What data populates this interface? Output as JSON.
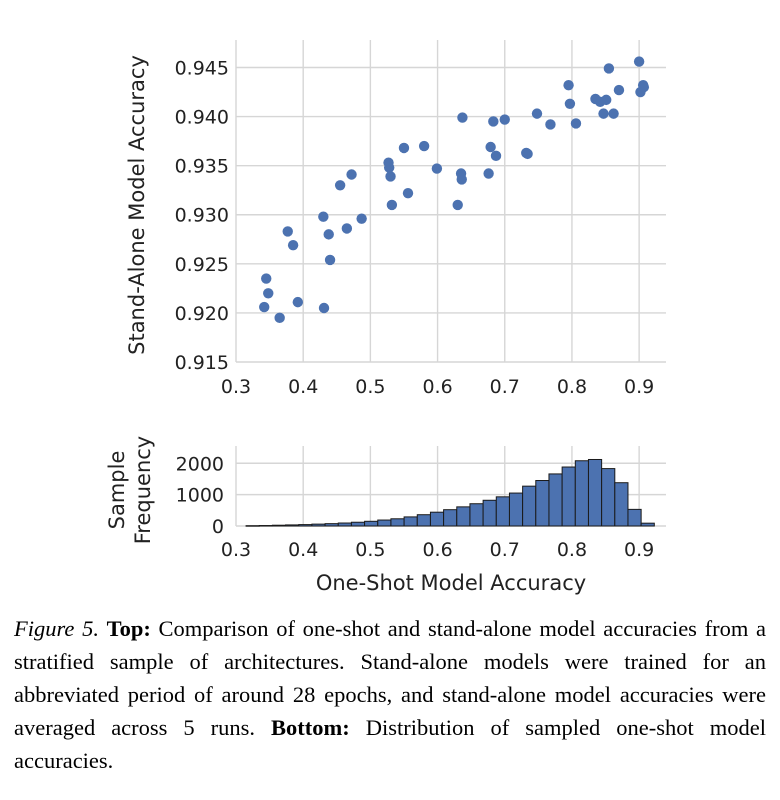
{
  "chart_data": [
    {
      "type": "scatter",
      "xlabel": "",
      "ylabel": "Stand-Alone Model Accuracy",
      "xlim": [
        0.3,
        0.94
      ],
      "ylim": [
        0.915,
        0.9478
      ],
      "xticks": [
        "0.3",
        "0.4",
        "0.5",
        "0.6",
        "0.7",
        "0.8",
        "0.9"
      ],
      "yticks": [
        "0.915",
        "0.920",
        "0.925",
        "0.930",
        "0.935",
        "0.940",
        "0.945"
      ],
      "grid": true,
      "color": "#4c72b0",
      "points": [
        [
          0.342,
          0.9206
        ],
        [
          0.345,
          0.9235
        ],
        [
          0.348,
          0.922
        ],
        [
          0.365,
          0.9195
        ],
        [
          0.377,
          0.9283
        ],
        [
          0.385,
          0.9269
        ],
        [
          0.392,
          0.9211
        ],
        [
          0.43,
          0.9298
        ],
        [
          0.431,
          0.9205
        ],
        [
          0.438,
          0.928
        ],
        [
          0.44,
          0.9254
        ],
        [
          0.455,
          0.933
        ],
        [
          0.465,
          0.9286
        ],
        [
          0.472,
          0.9341
        ],
        [
          0.487,
          0.9296
        ],
        [
          0.527,
          0.9353
        ],
        [
          0.528,
          0.9348
        ],
        [
          0.53,
          0.9339
        ],
        [
          0.532,
          0.931
        ],
        [
          0.55,
          0.9368
        ],
        [
          0.556,
          0.9322
        ],
        [
          0.58,
          0.937
        ],
        [
          0.599,
          0.9347
        ],
        [
          0.63,
          0.931
        ],
        [
          0.635,
          0.9342
        ],
        [
          0.636,
          0.9336
        ],
        [
          0.637,
          0.9399
        ],
        [
          0.676,
          0.9342
        ],
        [
          0.679,
          0.9369
        ],
        [
          0.683,
          0.9395
        ],
        [
          0.687,
          0.936
        ],
        [
          0.7,
          0.9397
        ],
        [
          0.732,
          0.9363
        ],
        [
          0.734,
          0.9362
        ],
        [
          0.748,
          0.9403
        ],
        [
          0.768,
          0.9392
        ],
        [
          0.795,
          0.9432
        ],
        [
          0.797,
          0.9413
        ],
        [
          0.806,
          0.9393
        ],
        [
          0.835,
          0.9418
        ],
        [
          0.842,
          0.9415
        ],
        [
          0.847,
          0.9403
        ],
        [
          0.851,
          0.9417
        ],
        [
          0.855,
          0.9449
        ],
        [
          0.862,
          0.9403
        ],
        [
          0.87,
          0.9427
        ],
        [
          0.9,
          0.9456
        ],
        [
          0.902,
          0.9425
        ],
        [
          0.906,
          0.9432
        ],
        [
          0.907,
          0.943
        ]
      ]
    },
    {
      "type": "bar",
      "xlabel": "One-Shot Model Accuracy",
      "ylabel": "Sample Frequency",
      "ylabel_lines": [
        "Sample",
        "Frequency"
      ],
      "xlim": [
        0.3,
        0.94
      ],
      "ylim": [
        0,
        2550
      ],
      "xticks": [
        "0.3",
        "0.4",
        "0.5",
        "0.6",
        "0.7",
        "0.8",
        "0.9"
      ],
      "yticks": [
        "0",
        "1000",
        "2000"
      ],
      "grid": true,
      "color": "#4c72b0",
      "bin_start": 0.315,
      "bin_width": 0.0196,
      "values": [
        10,
        15,
        25,
        35,
        45,
        60,
        75,
        95,
        120,
        150,
        190,
        230,
        290,
        360,
        440,
        520,
        610,
        710,
        820,
        930,
        1050,
        1270,
        1450,
        1660,
        1880,
        2080,
        2120,
        1830,
        1380,
        530,
        90
      ]
    }
  ],
  "caption": {
    "figure_label": "Figure 5.",
    "top_label": "Top:",
    "top_text": " Comparison of one-shot and stand-alone model accuracies from a stratified sample of architectures. Stand-alone models were trained for an abbreviated period of around 28 epochs, and stand-alone model accuracies were averaged across 5 runs.",
    "bottom_label": "Bottom:",
    "bottom_text": " Distribution of sampled one-shot model accuracies."
  }
}
